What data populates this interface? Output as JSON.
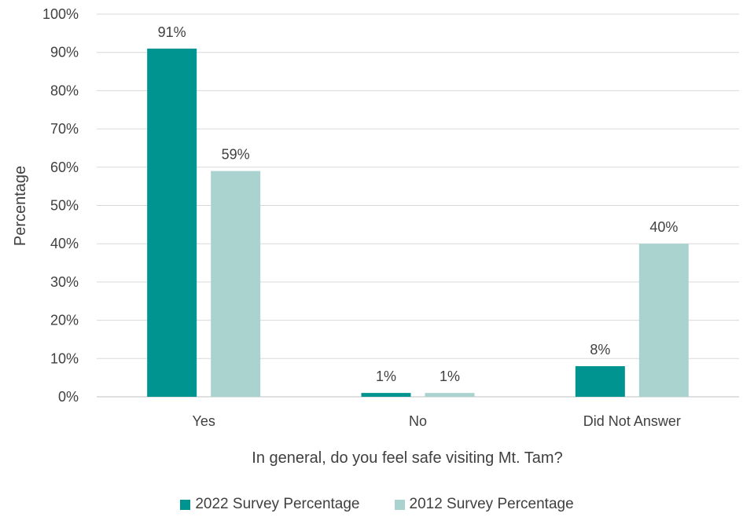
{
  "chart_data": {
    "type": "bar",
    "categories": [
      "Yes",
      "No",
      "Did Not Answer"
    ],
    "series": [
      {
        "name": "2022 Survey Percentage",
        "values": [
          91,
          1,
          8
        ],
        "labels": [
          "91%",
          "1%",
          "8%"
        ],
        "color": "#009490"
      },
      {
        "name": "2012 Survey Percentage",
        "values": [
          59,
          1,
          40
        ],
        "labels": [
          "59%",
          "1%",
          "40%"
        ],
        "color": "#aad2cf"
      }
    ],
    "xlabel": "In general, do you feel safe visiting Mt. Tam?",
    "ylabel": "Percentage",
    "ylim": [
      0,
      100
    ],
    "yticks": [
      "0%",
      "10%",
      "20%",
      "30%",
      "40%",
      "50%",
      "60%",
      "70%",
      "80%",
      "90%",
      "100%"
    ],
    "grid": true,
    "legend_position": "bottom"
  }
}
